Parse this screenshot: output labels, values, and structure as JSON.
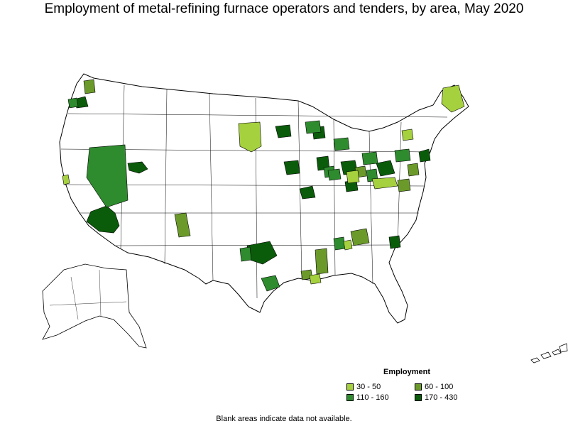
{
  "title": "Employment of metal-refining furnace operators and tenders, by area, May 2020",
  "legend": {
    "title": "Employment",
    "items": [
      {
        "label": "30 - 50",
        "color": "#a6d13e"
      },
      {
        "label": "60 - 100",
        "color": "#6b9a2a"
      },
      {
        "label": "110 - 160",
        "color": "#2e8b2e"
      },
      {
        "label": "170 - 430",
        "color": "#0a5c0a"
      }
    ]
  },
  "footnote": "Blank areas indicate data not available."
}
